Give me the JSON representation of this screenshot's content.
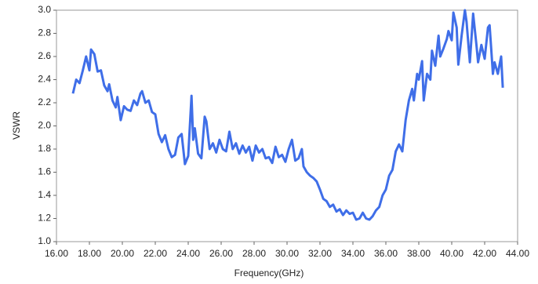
{
  "chart_data": {
    "type": "line",
    "x_label": "Frequency(GHz)",
    "y_label": "VSWR",
    "x": [
      17.0,
      17.2,
      17.4,
      17.6,
      17.8,
      18.0,
      18.1,
      18.3,
      18.5,
      18.7,
      18.9,
      19.1,
      19.2,
      19.4,
      19.6,
      19.7,
      19.9,
      20.1,
      20.3,
      20.5,
      20.7,
      20.9,
      21.1,
      21.2,
      21.4,
      21.6,
      21.8,
      22.0,
      22.2,
      22.4,
      22.6,
      22.8,
      23.0,
      23.2,
      23.4,
      23.6,
      23.8,
      24.0,
      24.2,
      24.3,
      24.4,
      24.6,
      24.8,
      25.0,
      25.1,
      25.3,
      25.5,
      25.7,
      25.9,
      26.1,
      26.3,
      26.5,
      26.7,
      26.9,
      27.1,
      27.3,
      27.5,
      27.7,
      27.9,
      28.1,
      28.3,
      28.5,
      28.7,
      28.9,
      29.1,
      29.3,
      29.5,
      29.7,
      29.9,
      30.1,
      30.3,
      30.5,
      30.7,
      30.9,
      31.0,
      31.2,
      31.4,
      31.6,
      31.8,
      32.0,
      32.2,
      32.4,
      32.6,
      32.8,
      33.0,
      33.2,
      33.4,
      33.6,
      33.8,
      34.0,
      34.2,
      34.4,
      34.6,
      34.8,
      35.0,
      35.2,
      35.4,
      35.6,
      35.8,
      36.0,
      36.2,
      36.4,
      36.6,
      36.8,
      37.0,
      37.2,
      37.4,
      37.6,
      37.7,
      37.9,
      38.0,
      38.2,
      38.3,
      38.5,
      38.7,
      38.8,
      39.0,
      39.2,
      39.3,
      39.5,
      39.7,
      39.8,
      40.0,
      40.1,
      40.3,
      40.4,
      40.6,
      40.8,
      40.9,
      41.1,
      41.3,
      41.5,
      41.6,
      41.8,
      42.0,
      42.2,
      42.3,
      42.5,
      42.6,
      42.8,
      43.0,
      43.1
    ],
    "series": [
      {
        "name": "VSWR",
        "color": "#3f6ee8",
        "values": [
          2.28,
          2.4,
          2.37,
          2.48,
          2.6,
          2.48,
          2.66,
          2.62,
          2.47,
          2.48,
          2.35,
          2.3,
          2.36,
          2.22,
          2.16,
          2.25,
          2.05,
          2.17,
          2.14,
          2.13,
          2.22,
          2.18,
          2.28,
          2.3,
          2.2,
          2.22,
          2.12,
          2.1,
          1.93,
          1.86,
          1.92,
          1.8,
          1.73,
          1.75,
          1.9,
          1.93,
          1.67,
          1.74,
          2.26,
          1.88,
          1.98,
          1.76,
          1.72,
          2.08,
          2.04,
          1.8,
          1.85,
          1.77,
          1.88,
          1.8,
          1.78,
          1.95,
          1.8,
          1.85,
          1.76,
          1.83,
          1.77,
          1.82,
          1.7,
          1.83,
          1.77,
          1.8,
          1.72,
          1.73,
          1.68,
          1.82,
          1.73,
          1.75,
          1.69,
          1.8,
          1.88,
          1.7,
          1.72,
          1.8,
          1.65,
          1.6,
          1.57,
          1.55,
          1.52,
          1.45,
          1.37,
          1.35,
          1.3,
          1.32,
          1.26,
          1.28,
          1.23,
          1.27,
          1.24,
          1.25,
          1.19,
          1.2,
          1.25,
          1.2,
          1.19,
          1.22,
          1.27,
          1.3,
          1.4,
          1.45,
          1.57,
          1.62,
          1.78,
          1.84,
          1.78,
          2.05,
          2.22,
          2.32,
          2.22,
          2.45,
          2.4,
          2.56,
          2.22,
          2.45,
          2.4,
          2.65,
          2.52,
          2.78,
          2.6,
          2.67,
          2.75,
          2.82,
          2.74,
          2.98,
          2.85,
          2.53,
          2.78,
          3.0,
          2.9,
          2.55,
          2.97,
          2.7,
          2.55,
          2.7,
          2.58,
          2.85,
          2.87,
          2.45,
          2.55,
          2.45,
          2.6,
          2.33
        ]
      }
    ],
    "xlim": [
      16,
      44
    ],
    "xticks": [
      {
        "value": 16,
        "label": "16.00"
      },
      {
        "value": 18,
        "label": "18.00"
      },
      {
        "value": 20,
        "label": "20.00"
      },
      {
        "value": 22,
        "label": "22.00"
      },
      {
        "value": 24,
        "label": "24.00"
      },
      {
        "value": 26,
        "label": "26.00"
      },
      {
        "value": 28,
        "label": "28.00"
      },
      {
        "value": 30,
        "label": "30.00"
      },
      {
        "value": 32,
        "label": "32.00"
      },
      {
        "value": 34,
        "label": "34.00"
      },
      {
        "value": 36,
        "label": "36.00"
      },
      {
        "value": 38,
        "label": "38.00"
      },
      {
        "value": 40,
        "label": "40.00"
      },
      {
        "value": 42,
        "label": "42.00"
      },
      {
        "value": 44,
        "label": "44.00"
      }
    ],
    "ylim": [
      1,
      3
    ],
    "yticks": [
      {
        "value": 1,
        "label": "1.0"
      },
      1.2,
      1.4,
      1.6,
      1.8,
      {
        "value": 2,
        "label": "2.0"
      },
      2.2,
      2.4,
      2.6,
      2.8,
      {
        "value": 3,
        "label": "3.0"
      }
    ],
    "grid": false
  }
}
